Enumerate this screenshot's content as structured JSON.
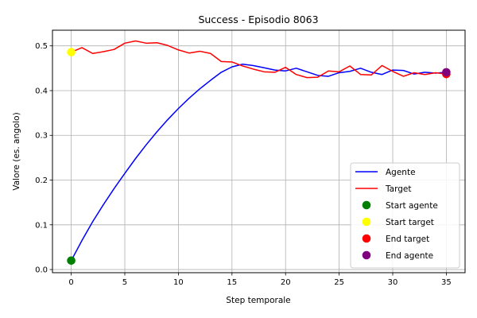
{
  "chart_data": {
    "type": "line",
    "title": "Success - Episodio 8063",
    "xlabel": "Step temporale",
    "ylabel": "Valore (es. angolo)",
    "xlim": [
      -1.75,
      36.75
    ],
    "ylim": [
      -0.007,
      0.535
    ],
    "xticks": [
      0,
      5,
      10,
      15,
      20,
      25,
      30,
      35
    ],
    "yticks": [
      0.0,
      0.1,
      0.2,
      0.3,
      0.4,
      0.5
    ],
    "ytick_labels": [
      "0.0",
      "0.1",
      "0.2",
      "0.3",
      "0.4",
      "0.5"
    ],
    "grid": true,
    "legend_position": "lower-right",
    "series": [
      {
        "name": "Agente",
        "color": "#0000ff",
        "x": [
          0,
          1,
          2,
          3,
          4,
          5,
          6,
          7,
          8,
          9,
          10,
          11,
          12,
          13,
          14,
          15,
          16,
          17,
          18,
          19,
          20,
          21,
          22,
          23,
          24,
          25,
          26,
          27,
          28,
          29,
          30,
          31,
          32,
          33,
          34,
          35
        ],
        "y": [
          0.02,
          0.065,
          0.107,
          0.145,
          0.181,
          0.215,
          0.248,
          0.279,
          0.308,
          0.335,
          0.36,
          0.383,
          0.404,
          0.423,
          0.441,
          0.453,
          0.459,
          0.456,
          0.451,
          0.446,
          0.444,
          0.45,
          0.442,
          0.434,
          0.432,
          0.44,
          0.443,
          0.45,
          0.441,
          0.436,
          0.446,
          0.445,
          0.437,
          0.441,
          0.439,
          0.441
        ]
      },
      {
        "name": "Target",
        "color": "#ff0000",
        "x": [
          0,
          1,
          2,
          3,
          4,
          5,
          6,
          7,
          8,
          9,
          10,
          11,
          12,
          13,
          14,
          15,
          16,
          17,
          18,
          19,
          20,
          21,
          22,
          23,
          24,
          25,
          26,
          27,
          28,
          29,
          30,
          31,
          32,
          33,
          34,
          35
        ],
        "y": [
          0.486,
          0.496,
          0.483,
          0.487,
          0.492,
          0.506,
          0.511,
          0.506,
          0.507,
          0.501,
          0.491,
          0.484,
          0.488,
          0.483,
          0.465,
          0.464,
          0.455,
          0.448,
          0.442,
          0.441,
          0.452,
          0.436,
          0.429,
          0.43,
          0.444,
          0.442,
          0.455,
          0.436,
          0.435,
          0.456,
          0.443,
          0.432,
          0.44,
          0.436,
          0.44,
          0.437
        ]
      }
    ],
    "markers": [
      {
        "name": "Start agente",
        "color": "#008000",
        "x": 0,
        "y": 0.02
      },
      {
        "name": "Start target",
        "color": "#ffff00",
        "x": 0,
        "y": 0.486
      },
      {
        "name": "End target",
        "color": "#ff0000",
        "x": 35,
        "y": 0.437
      },
      {
        "name": "End agente",
        "color": "#800080",
        "x": 35,
        "y": 0.441
      }
    ]
  }
}
